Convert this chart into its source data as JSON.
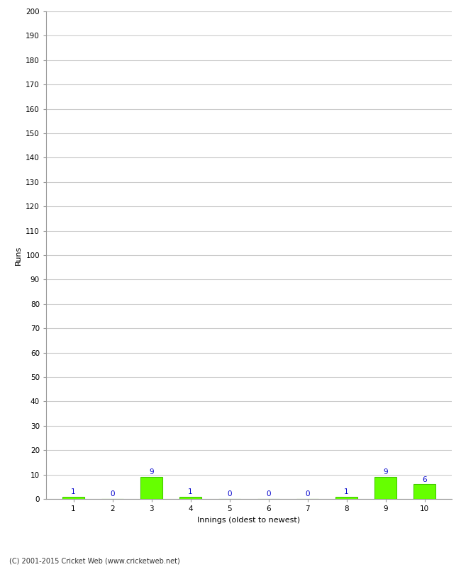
{
  "innings": [
    1,
    2,
    3,
    4,
    5,
    6,
    7,
    8,
    9,
    10
  ],
  "innings_labels": [
    "1",
    "2",
    "3",
    "4",
    "5",
    "6",
    "7",
    "8",
    "9",
    "10"
  ],
  "values": [
    1,
    0,
    9,
    1,
    0,
    0,
    0,
    1,
    9,
    6
  ],
  "bar_color": "#66ff00",
  "bar_edge_color": "#44cc00",
  "label_color": "#0000cc",
  "xlabel": "Innings (oldest to newest)",
  "ylabel": "Runs",
  "ylim": [
    0,
    200
  ],
  "yticks": [
    0,
    10,
    20,
    30,
    40,
    50,
    60,
    70,
    80,
    90,
    100,
    110,
    120,
    130,
    140,
    150,
    160,
    170,
    180,
    190,
    200
  ],
  "background_color": "#ffffff",
  "grid_color": "#cccccc",
  "footer": "(C) 2001-2015 Cricket Web (www.cricketweb.net)"
}
